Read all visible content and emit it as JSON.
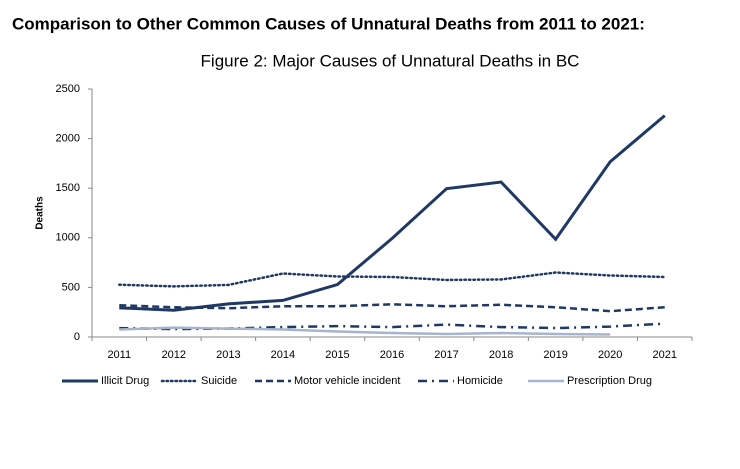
{
  "heading": "Comparison to Other Common Causes of Unnatural Deaths from 2011 to 2021:",
  "chart_data": {
    "type": "line",
    "title": "Figure 2: Major Causes of Unnatural Deaths in BC",
    "y_label": "Deaths",
    "categories": [
      "2011",
      "2012",
      "2013",
      "2014",
      "2015",
      "2016",
      "2017",
      "2018",
      "2019",
      "2020",
      "2021"
    ],
    "ylim": [
      0,
      2500
    ],
    "yticks": [
      0,
      500,
      1000,
      1500,
      2000,
      2500
    ],
    "legend": "bottom",
    "series": [
      {
        "name": "Illicit Drug",
        "color": "#1f3864",
        "style": "solid",
        "values": [
          294,
          270,
          334,
          369,
          529,
          993,
          1495,
          1562,
          985,
          1767,
          2232
        ]
      },
      {
        "name": "Suicide",
        "color": "#1f3864",
        "style": "dotted",
        "values": [
          527,
          510,
          525,
          640,
          610,
          605,
          575,
          580,
          650,
          620,
          605
        ]
      },
      {
        "name": "Motor vehicle incident",
        "color": "#1f3864",
        "style": "dashed",
        "values": [
          320,
          300,
          290,
          310,
          310,
          330,
          310,
          325,
          300,
          260,
          300
        ]
      },
      {
        "name": "Homicide",
        "color": "#1f3864",
        "style": "dashdot",
        "values": [
          90,
          80,
          85,
          100,
          110,
          100,
          125,
          100,
          90,
          105,
          135
        ]
      },
      {
        "name": "Prescription Drug",
        "color": "#a6b4cf",
        "style": "solid",
        "values": [
          75,
          95,
          85,
          75,
          55,
          40,
          30,
          40,
          30,
          25,
          null
        ]
      }
    ]
  }
}
